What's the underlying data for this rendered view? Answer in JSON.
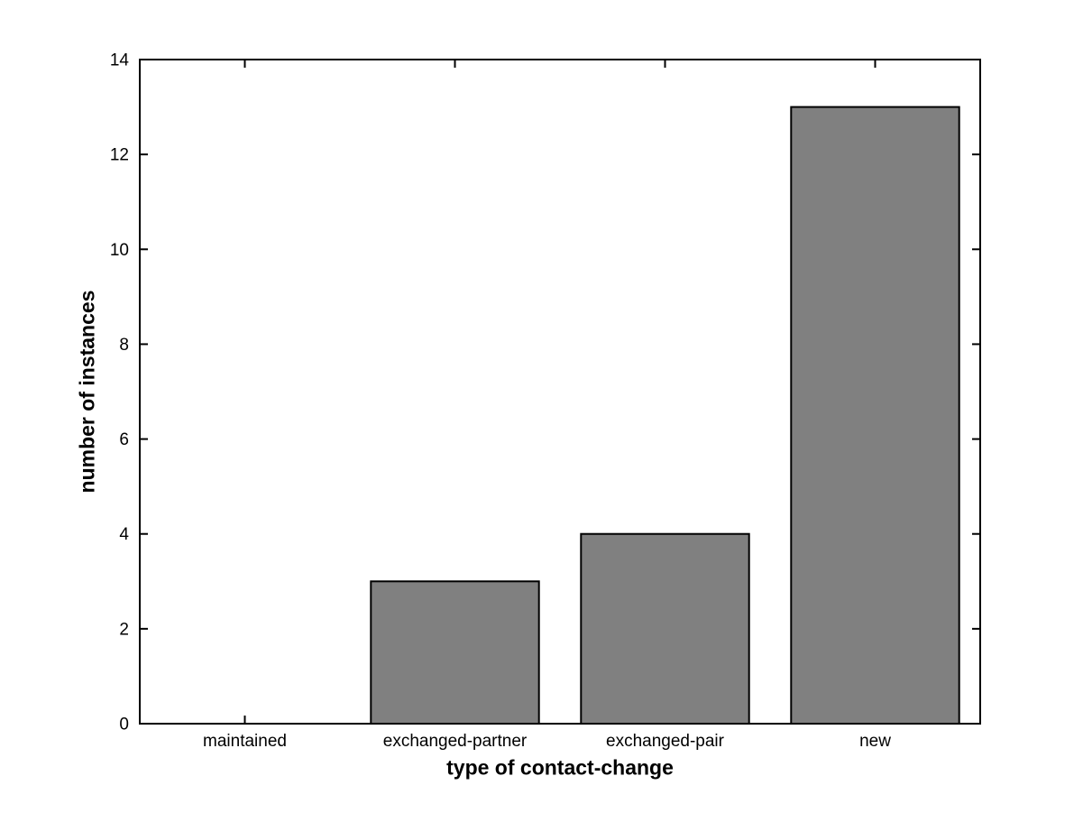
{
  "figure": {
    "background": "#ffffff"
  },
  "chart_data": {
    "type": "bar",
    "title": "",
    "categories": [
      "maintained",
      "exchanged-partner",
      "exchanged-pair",
      "new"
    ],
    "values": [
      0,
      3,
      4,
      13
    ],
    "xlabel": "type of contact-change",
    "ylabel": "number of instances",
    "ylim": [
      0,
      14
    ],
    "yticks": [
      0,
      2,
      4,
      6,
      8,
      10,
      12,
      14
    ],
    "grid": false,
    "legend": null,
    "bar_color": "#808080",
    "bar_edge_color": "#000000",
    "axis_color": "#000000",
    "tick_label_color": "#000000",
    "bar_width_fraction": 0.8
  }
}
